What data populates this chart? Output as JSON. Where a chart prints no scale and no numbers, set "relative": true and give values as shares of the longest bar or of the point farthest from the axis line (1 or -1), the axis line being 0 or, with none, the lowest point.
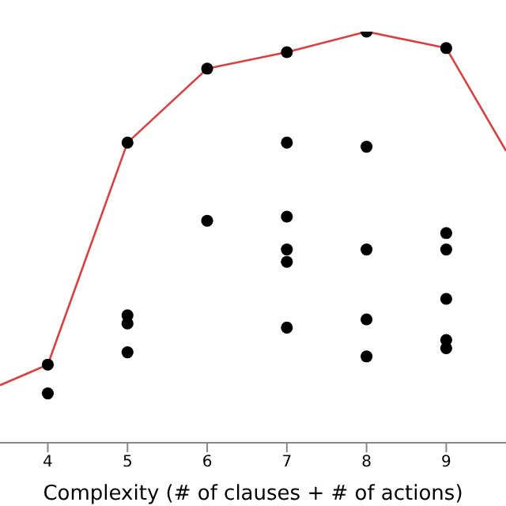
{
  "chart_data": {
    "type": "scatter",
    "relative": true,
    "xlabel": "Complexity (# of clauses + # of actions)",
    "xlim": [
      3.4,
      9.75
    ],
    "xticks": [
      4,
      5,
      6,
      7,
      8,
      9
    ],
    "tick_labels": "x",
    "series": [
      {
        "type": "line",
        "color": "#d9403f",
        "marker": "none",
        "x": [
          3.4,
          4,
          5,
          6,
          7,
          8,
          9,
          9.75
        ],
        "values": [
          0.14,
          0.19,
          0.73,
          0.91,
          0.95,
          1.0,
          0.96,
          0.71
        ]
      },
      {
        "color": "#000000",
        "marker": "circle",
        "x": [
          4,
          4,
          5,
          5,
          5,
          5,
          6,
          6,
          7,
          7,
          7,
          7,
          7,
          7,
          8,
          8,
          8,
          8,
          8,
          9,
          9,
          9,
          9,
          9,
          9
        ],
        "values": [
          0.19,
          0.12,
          0.73,
          0.31,
          0.29,
          0.22,
          0.91,
          0.54,
          0.95,
          0.73,
          0.55,
          0.47,
          0.44,
          0.28,
          1.0,
          0.72,
          0.47,
          0.3,
          0.21,
          0.96,
          0.51,
          0.47,
          0.35,
          0.25,
          0.23
        ]
      }
    ]
  }
}
